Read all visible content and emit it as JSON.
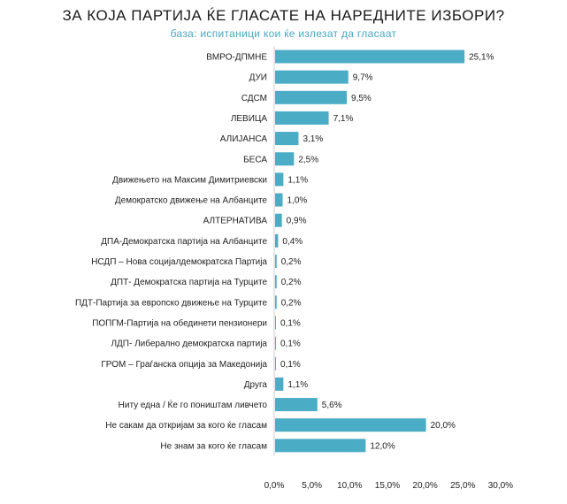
{
  "chart_data": {
    "type": "bar",
    "orientation": "horizontal",
    "title": "ЗА КОЈА ПАРТИЈА ЌЕ ГЛАСАТЕ НА НАРЕДНИТЕ ИЗБОРИ?",
    "subtitle": "база: испитаници кои ќе излезат да гласаат",
    "categories": [
      "ВМРО-ДПМНЕ",
      "ДУИ",
      "СДСМ",
      "ЛЕВИЦА",
      "АЛИЈАНСА",
      "БЕСА",
      "Движењето на Максим Димитриевски",
      "Демократско движење на Албанците",
      "АЛТЕРНАТИВА",
      "ДПА-Демократска партија на Албанците",
      "НСДП – Нова социјалдемократска Партија",
      "ДПТ- Демократска партија на Турците",
      "ПДТ-Партија за европско движење на Турците",
      "ПОПГМ-Партија на обединети пензионери",
      "ЛДП- Либерално демократска партија",
      "ГРОМ – Граѓанска опција за Македонија",
      "Друга",
      "Ниту една / Ќе го поништам ливчето",
      "Не сакам да откријам за кого ќе гласам",
      "Не знам за кого ќе гласам"
    ],
    "values": [
      25.1,
      9.7,
      9.5,
      7.1,
      3.1,
      2.5,
      1.1,
      1.0,
      0.9,
      0.4,
      0.2,
      0.2,
      0.2,
      0.1,
      0.1,
      0.1,
      1.1,
      5.6,
      20.0,
      12.0
    ],
    "value_labels": [
      "25,1%",
      "9,7%",
      "9,5%",
      "7,1%",
      "3,1%",
      "2,5%",
      "1,1%",
      "1,0%",
      "0,9%",
      "0,4%",
      "0,2%",
      "0,2%",
      "0,2%",
      "0,1%",
      "0,1%",
      "0,1%",
      "1,1%",
      "5,6%",
      "20,0%",
      "12,0%"
    ],
    "xlim": [
      0,
      30
    ],
    "xticks": [
      0,
      5,
      10,
      15,
      20,
      25,
      30
    ],
    "xtick_labels": [
      "0,0%",
      "5,0%",
      "10,0%",
      "15,0%",
      "20,0%",
      "25,0%",
      "30,0%"
    ],
    "xlabel": "",
    "ylabel": "",
    "grid": false,
    "bar_color": "#4aacc5"
  }
}
